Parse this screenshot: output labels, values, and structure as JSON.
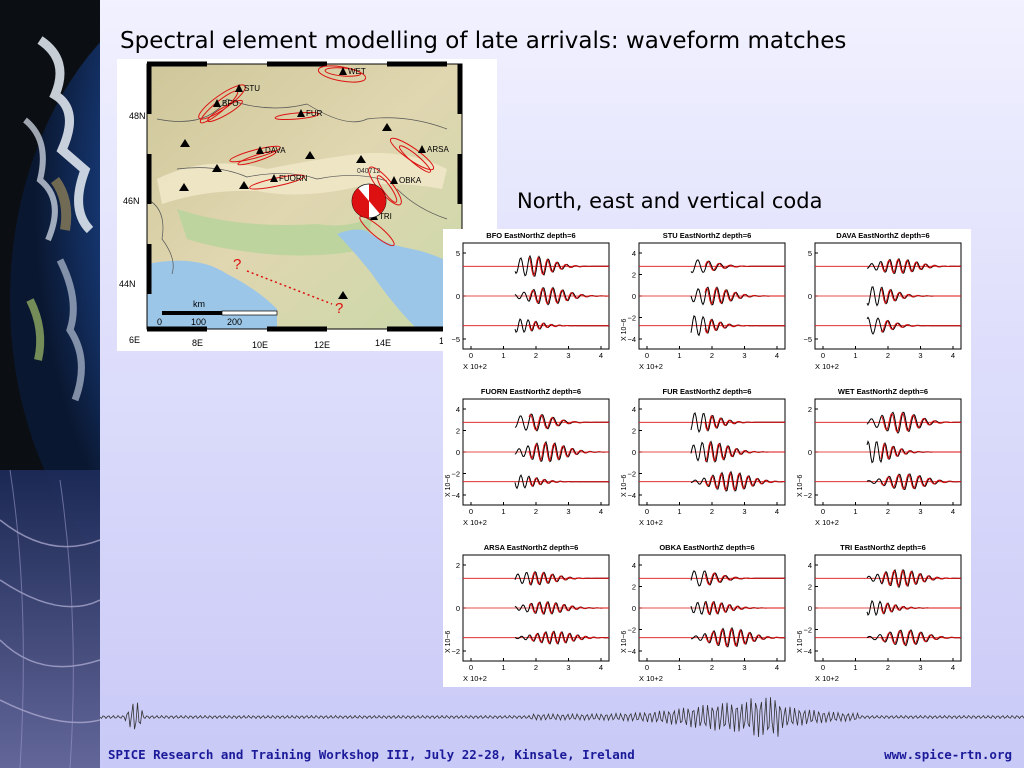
{
  "slide": {
    "title": "Spectral element modelling of late arrivals: waveform matches",
    "subtitle": "North, east and vertical coda"
  },
  "map": {
    "stations": [
      "STU",
      "BFO",
      "FUR",
      "WET",
      "DAVA",
      "ARSA",
      "FUORN",
      "OBKA",
      "TRI"
    ],
    "event_label": "040712",
    "lat_labels": [
      "48N",
      "46N",
      "44N"
    ],
    "lon_labels": [
      "6E",
      "8E",
      "10E",
      "12E",
      "14E",
      "1"
    ],
    "scale": {
      "unit": "km",
      "ticks": [
        "0",
        "100",
        "200"
      ]
    },
    "question_marks": [
      "?",
      "?"
    ],
    "colors": {
      "land": "#d8cfa2",
      "low": "#b7d3a0",
      "sea": "#9cc6e8",
      "path": "#d11"
    }
  },
  "waveforms": {
    "panels": [
      {
        "title": "BFO EastNorthZ depth=6",
        "y_ticks": [
          "5",
          "0",
          "−5"
        ],
        "ylabel": "",
        "xlabel": "X 10+2",
        "x_ticks": [
          "0",
          "1",
          "2",
          "3",
          "4"
        ]
      },
      {
        "title": "STU EastNorthZ depth=6",
        "y_ticks": [
          "4",
          "2",
          "0",
          "−2",
          "−4"
        ],
        "ylabel": "X 10−6",
        "xlabel": "X 10+2",
        "x_ticks": [
          "0",
          "1",
          "2",
          "3",
          "4"
        ]
      },
      {
        "title": "DAVA EastNorthZ depth=6",
        "y_ticks": [
          "5",
          "0",
          "−5"
        ],
        "ylabel": "",
        "xlabel": "X 10+2",
        "x_ticks": [
          "0",
          "1",
          "2",
          "3",
          "4"
        ]
      },
      {
        "title": "FUORN EastNorthZ depth=6",
        "y_ticks": [
          "4",
          "2",
          "0",
          "−2",
          "−4"
        ],
        "ylabel": "X 10−6",
        "xlabel": "X 10+2",
        "x_ticks": [
          "0",
          "1",
          "2",
          "3",
          "4"
        ]
      },
      {
        "title": "FUR EastNorthZ depth=6",
        "y_ticks": [
          "4",
          "2",
          "0",
          "−2",
          "−4"
        ],
        "ylabel": "X 10−6",
        "xlabel": "X 10+2",
        "x_ticks": [
          "0",
          "1",
          "2",
          "3",
          "4"
        ]
      },
      {
        "title": "WET EastNorthZ depth=6",
        "y_ticks": [
          "2",
          "0",
          "−2"
        ],
        "ylabel": "X 10−6",
        "xlabel": "X 10+2",
        "x_ticks": [
          "0",
          "1",
          "2",
          "3",
          "4"
        ]
      },
      {
        "title": "ARSA EastNorthZ depth=6",
        "y_ticks": [
          "2",
          "0",
          "−2"
        ],
        "ylabel": "X 10−6",
        "xlabel": "X 10+2",
        "x_ticks": [
          "0",
          "1",
          "2",
          "3",
          "4"
        ]
      },
      {
        "title": "OBKA EastNorthZ depth=6",
        "y_ticks": [
          "4",
          "2",
          "0",
          "−2",
          "−4"
        ],
        "ylabel": "X 10−6",
        "xlabel": "X 10+2",
        "x_ticks": [
          "0",
          "1",
          "2",
          "3",
          "4"
        ]
      },
      {
        "title": "TRI EastNorthZ depth=6",
        "y_ticks": [
          "4",
          "2",
          "0",
          "−2",
          "−4"
        ],
        "ylabel": "X 10−6",
        "xlabel": "X 10+2",
        "x_ticks": [
          "0",
          "1",
          "2",
          "3",
          "4"
        ]
      }
    ],
    "colors": {
      "observed": "#000000",
      "synthetic": "#dd1111",
      "baseline": "#dd1111"
    }
  },
  "footer": {
    "left": "SPICE Research and Training Workshop III, July 22-28, Kinsale, Ireland",
    "right": "www.spice-rtn.org"
  }
}
